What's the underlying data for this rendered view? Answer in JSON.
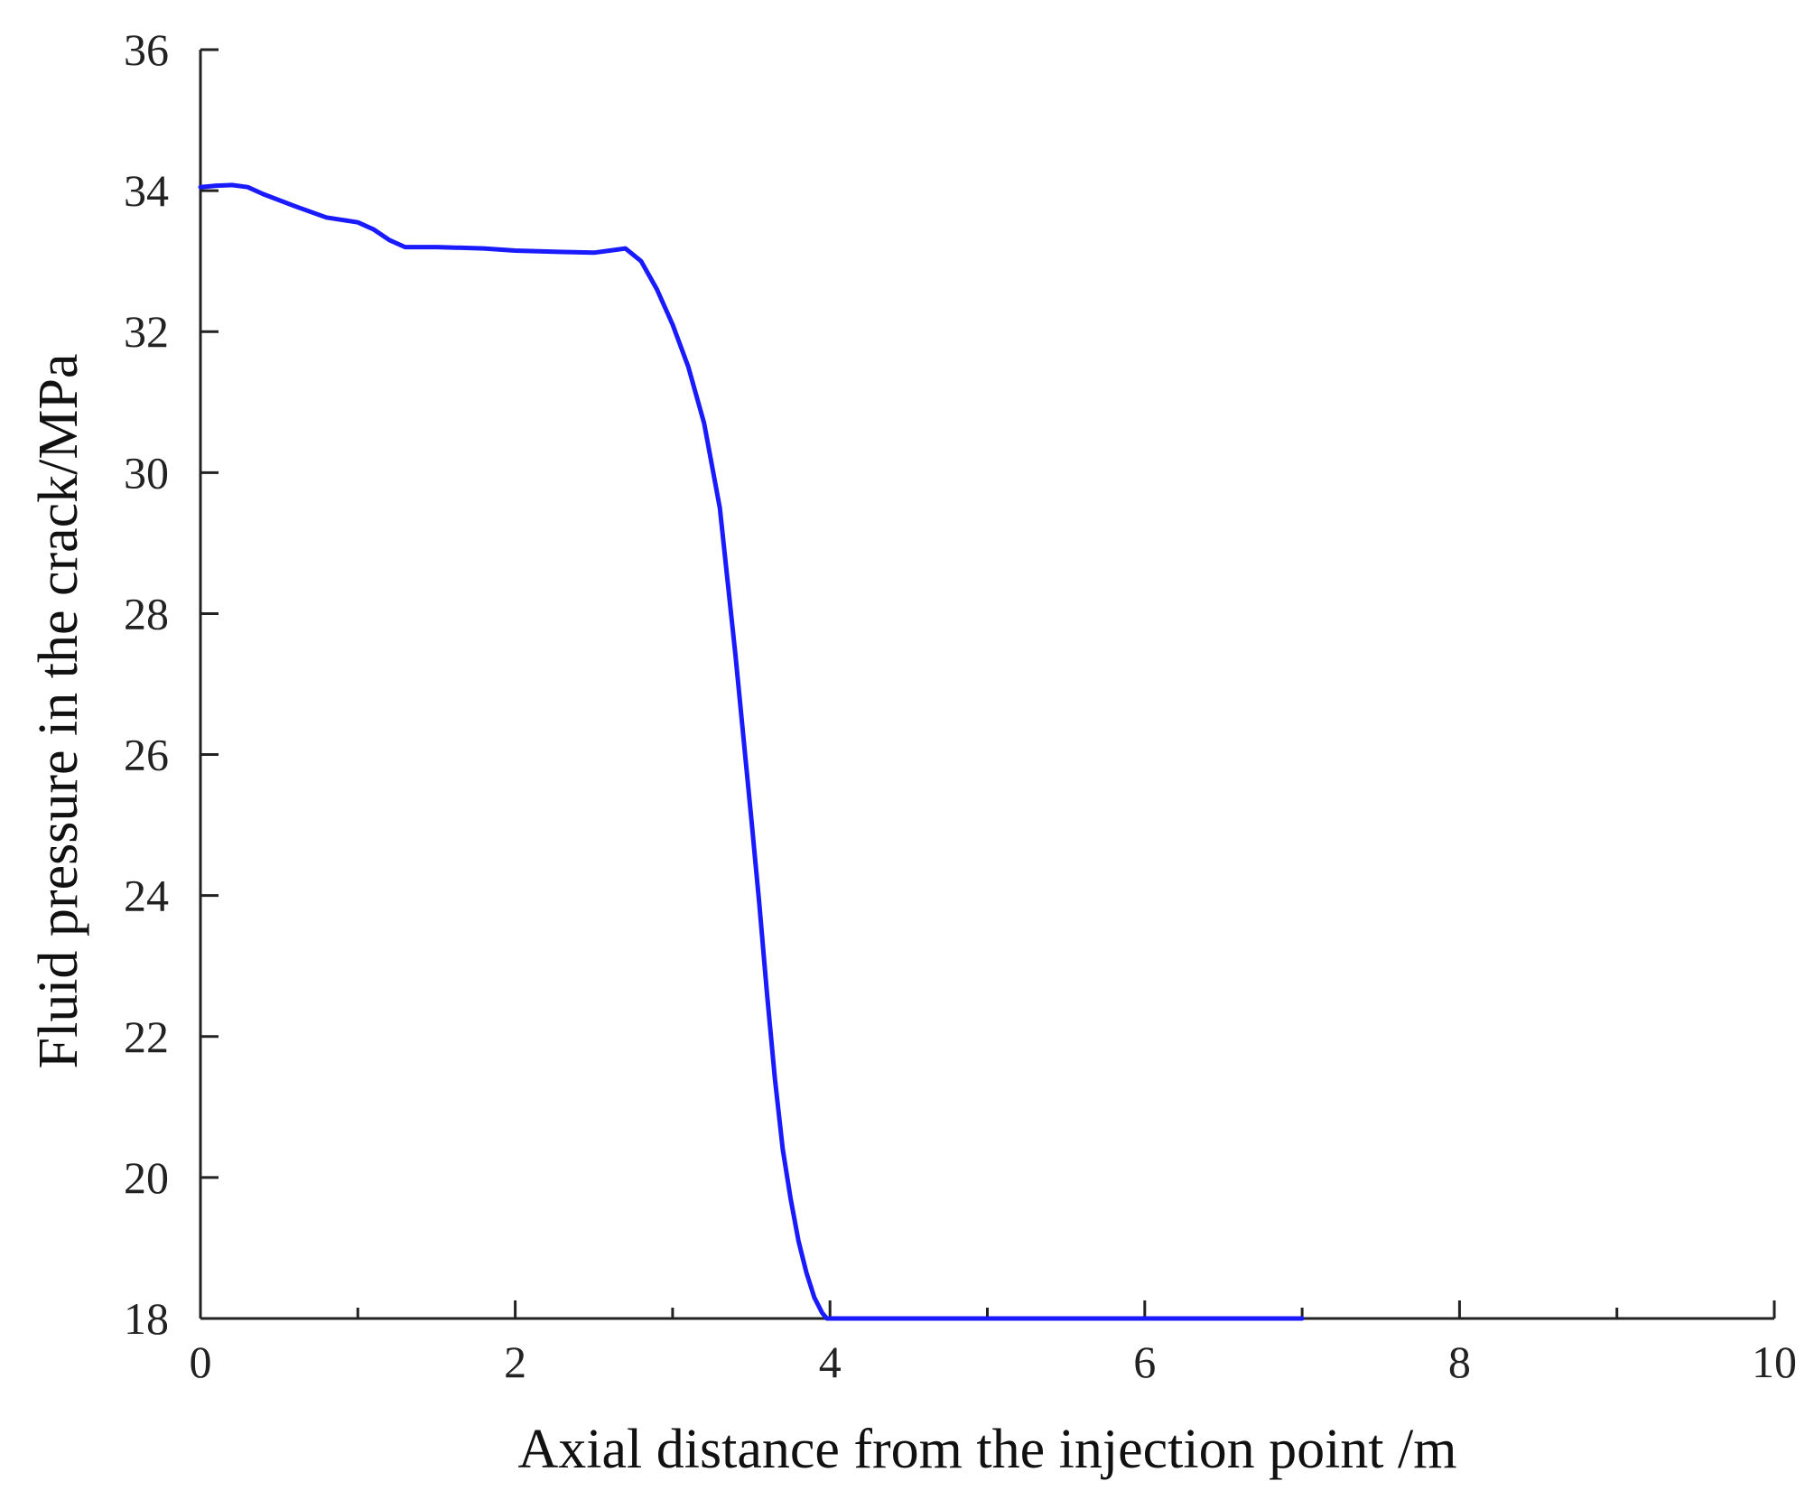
{
  "chart_data": {
    "type": "line",
    "title": "",
    "xlabel": "Axial distance from the injection point /m",
    "ylabel": "Fluid pressure in the crack/MPa",
    "xlim": [
      0,
      10
    ],
    "ylim": [
      18,
      36
    ],
    "x_ticks": [
      0,
      2,
      4,
      6,
      8,
      10
    ],
    "x_minor_ticks": [
      1,
      3,
      5,
      7,
      9
    ],
    "y_ticks": [
      18,
      20,
      22,
      24,
      26,
      28,
      30,
      32,
      34,
      36
    ],
    "grid": false,
    "legend": "none",
    "colors": {
      "series": "#1a1aff",
      "axis": "#222222"
    },
    "series": [
      {
        "x": [
          0,
          0.1,
          0.2,
          0.3,
          0.4,
          0.6,
          0.8,
          1.0,
          1.1,
          1.2,
          1.3,
          1.5,
          1.8,
          2.0,
          2.3,
          2.5,
          2.6,
          2.7,
          2.8,
          2.9,
          3.0,
          3.1,
          3.2,
          3.3,
          3.4,
          3.5,
          3.55,
          3.6,
          3.65,
          3.7,
          3.75,
          3.8,
          3.85,
          3.9,
          3.95,
          3.98,
          4.2,
          5.0,
          6.0,
          7.0
        ],
        "y": [
          34.05,
          34.07,
          34.08,
          34.05,
          33.95,
          33.78,
          33.62,
          33.55,
          33.45,
          33.3,
          33.2,
          33.2,
          33.18,
          33.15,
          33.13,
          33.12,
          33.15,
          33.18,
          33.0,
          32.6,
          32.1,
          31.5,
          30.7,
          29.5,
          27.4,
          25.1,
          23.9,
          22.6,
          21.4,
          20.4,
          19.7,
          19.1,
          18.65,
          18.3,
          18.08,
          18.0,
          18.0,
          18.0,
          18.0,
          18.0
        ]
      }
    ]
  }
}
